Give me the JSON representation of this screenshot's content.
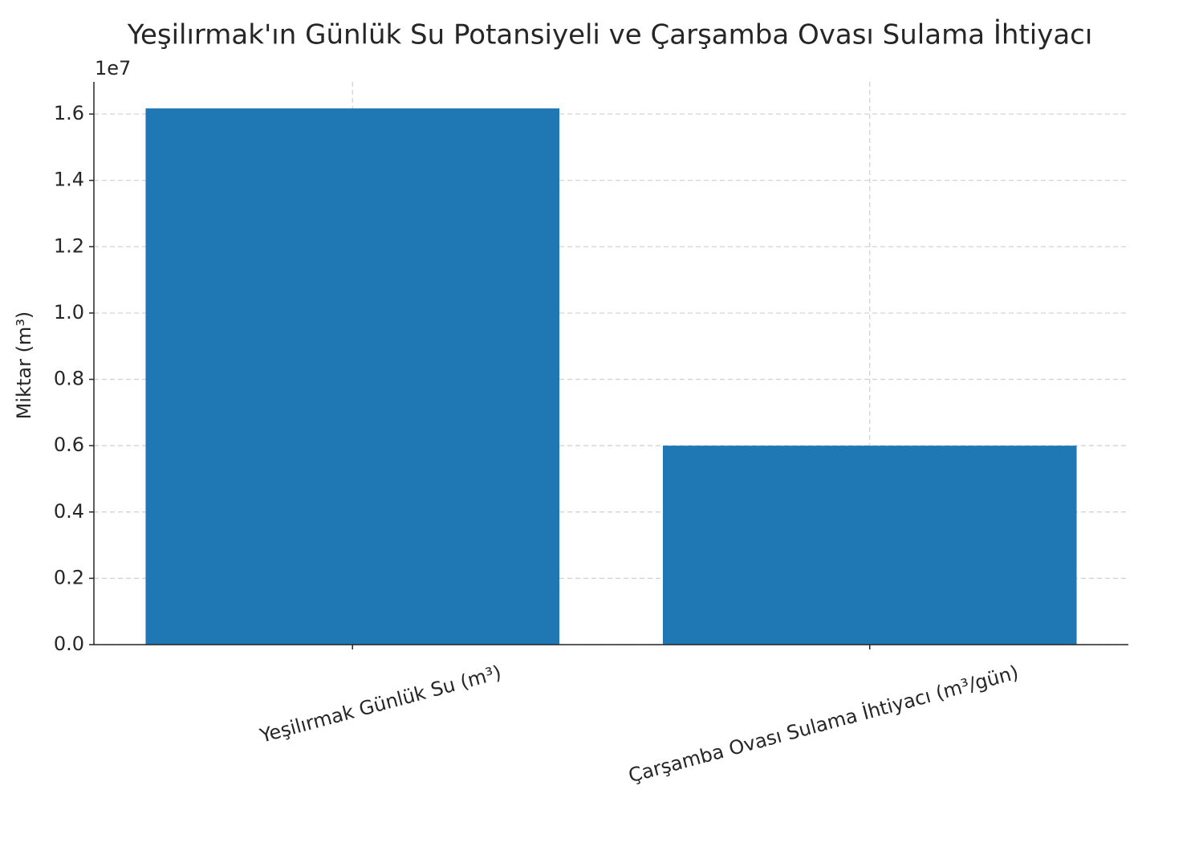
{
  "chart_data": {
    "type": "bar",
    "title": "Yeşilırmak'ın Günlük Su Potansiyeli ve Çarşamba Ovası Sulama İhtiyacı",
    "y_label": "Miktar (m³)",
    "y_offset_label": "1e7",
    "categories": [
      "Yeşilırmak Günlük Su (m³)",
      "Çarşamba Ovası Sulama İhtiyacı (m³/gün)"
    ],
    "values": [
      16170000,
      6000000
    ],
    "color": "#1f77b4",
    "ylim": [
      0,
      16970000
    ],
    "yticks": [
      {
        "value": 0,
        "label": "0.0"
      },
      {
        "value": 2000000,
        "label": "0.2"
      },
      {
        "value": 4000000,
        "label": "0.4"
      },
      {
        "value": 6000000,
        "label": "0.6"
      },
      {
        "value": 8000000,
        "label": "0.8"
      },
      {
        "value": 10000000,
        "label": "1.0"
      },
      {
        "value": 12000000,
        "label": "1.2"
      },
      {
        "value": 14000000,
        "label": "1.4"
      },
      {
        "value": 16000000,
        "label": "1.6"
      }
    ],
    "grid": true
  }
}
